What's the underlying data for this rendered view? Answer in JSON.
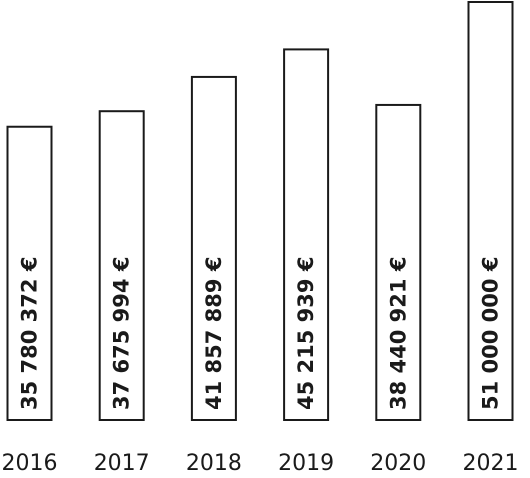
{
  "chart_data": {
    "type": "bar",
    "categories": [
      "2016",
      "2017",
      "2018",
      "2019",
      "2020",
      "2021"
    ],
    "values": [
      35780372,
      37675994,
      41857889,
      45215939,
      38440921,
      51000000
    ],
    "value_labels": [
      "35 780 372 €",
      "37 675 994 €",
      "41 857 889 €",
      "45 215 939 €",
      "38 440 921 €",
      "51 000 000 €"
    ],
    "title": "",
    "xlabel": "",
    "ylabel": "",
    "grid": false,
    "legend": "none",
    "bar_fill": "#ffffff",
    "bar_stroke": "#1a1a1a",
    "text_color": "#1a1a1a"
  }
}
